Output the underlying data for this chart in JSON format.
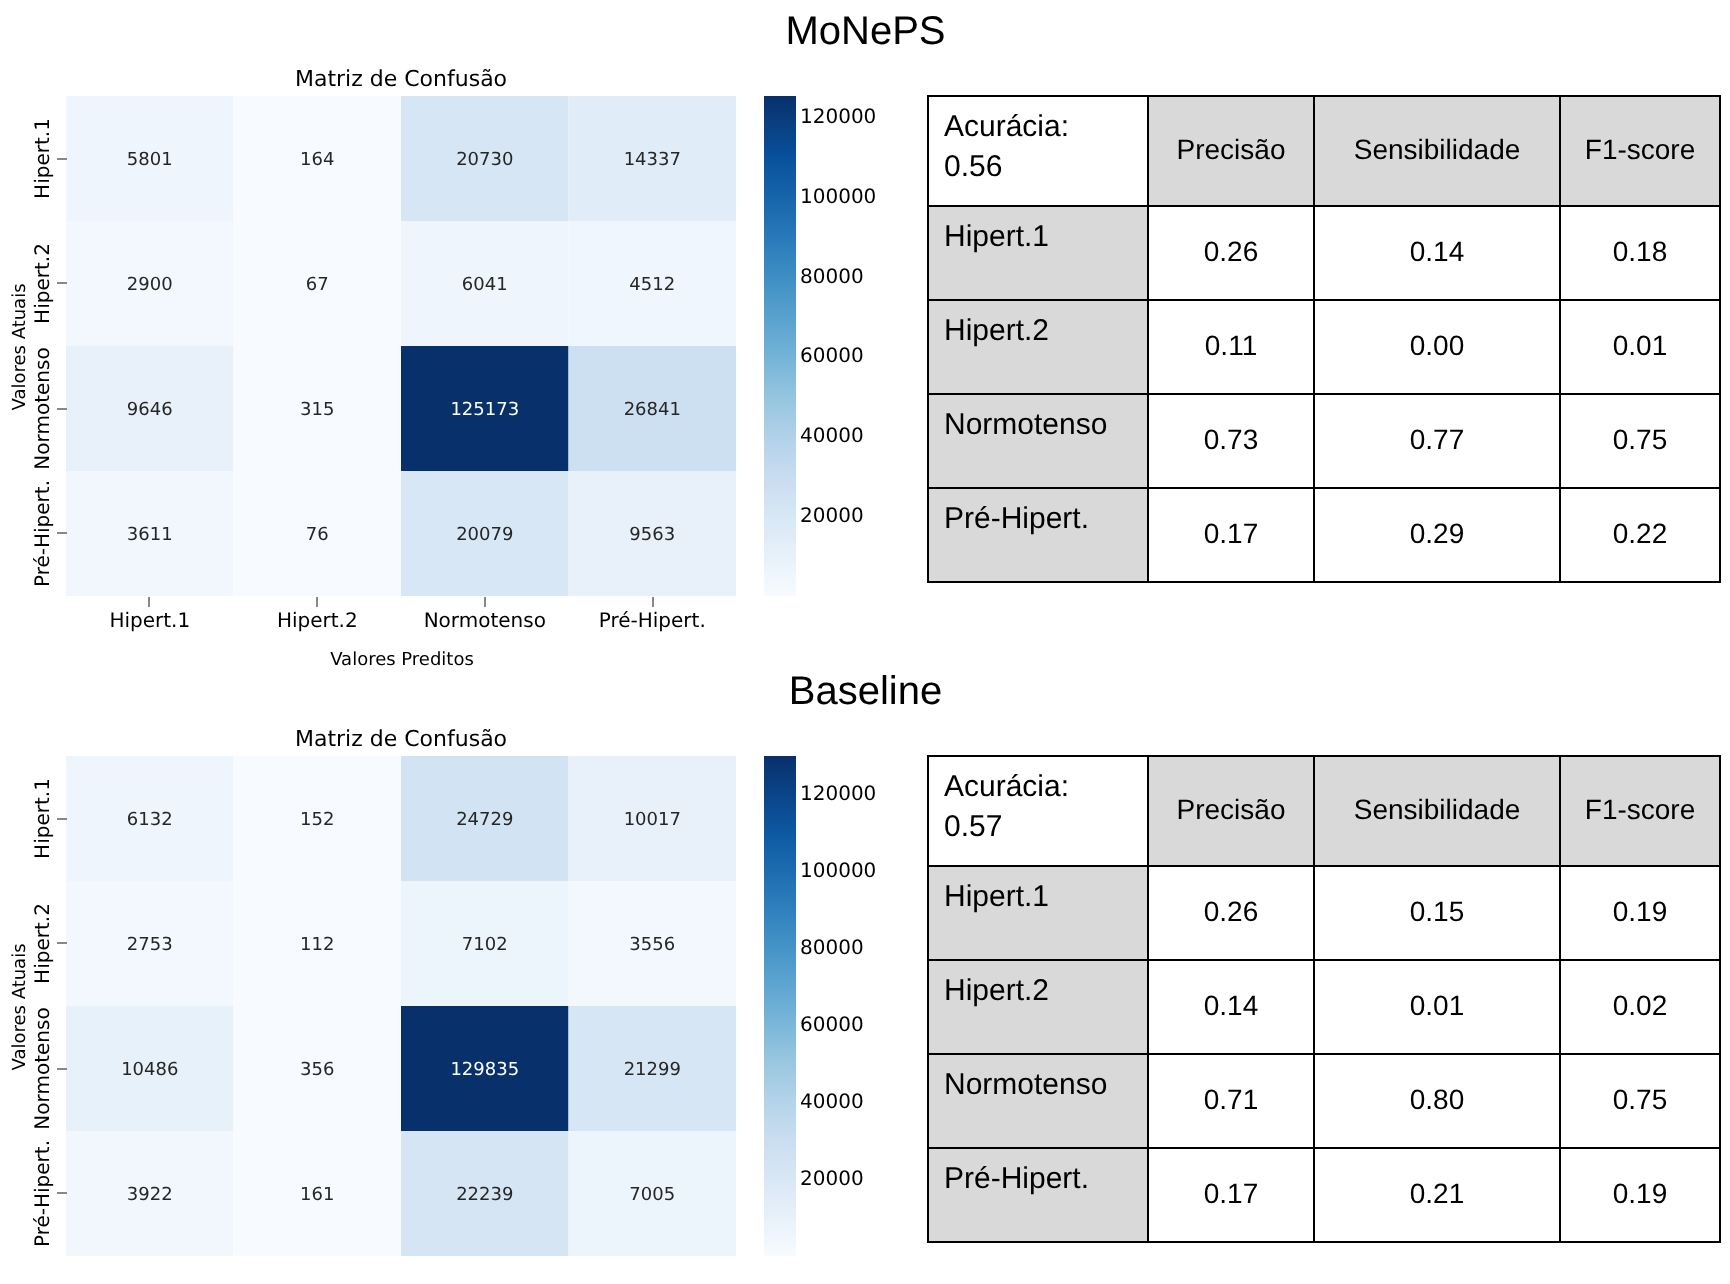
{
  "chart_data": [
    {
      "type": "heatmap",
      "title": "Matriz de Confusão",
      "annotations": [
        "MoNePS"
      ],
      "xlabel": "Valores Preditos",
      "ylabel": "Valores Atuais",
      "data_labels": true,
      "categories": [
        "Hipert.1",
        "Hipert.2",
        "Normotenso",
        "Pré-Hipert."
      ],
      "y_categories": [
        "Hipert.1",
        "Hipert.2",
        "Normotenso",
        "Pré-Hipert."
      ],
      "cells": [
        [
          5801,
          164,
          20730,
          14337
        ],
        [
          2900,
          67,
          6041,
          4512
        ],
        [
          9646,
          315,
          125173,
          26841
        ],
        [
          3611,
          76,
          20079,
          9563
        ]
      ],
      "clim": [
        67,
        125173
      ],
      "cticks": [
        20000,
        40000,
        60000,
        80000,
        100000,
        120000
      ]
    },
    {
      "type": "other",
      "title": "Acurácia: 0.56",
      "categories": [
        "Precisão",
        "Sensibilidade",
        "F1-score"
      ],
      "y_categories": [
        "Hipert.1",
        "Hipert.2",
        "Normotenso",
        "Pré-Hipert."
      ],
      "cell_labels": [
        [
          "0.26",
          "0.14",
          "0.18"
        ],
        [
          "0.11",
          "0.00",
          "0.01"
        ],
        [
          "0.73",
          "0.77",
          "0.75"
        ],
        [
          "0.17",
          "0.29",
          "0.22"
        ]
      ]
    },
    {
      "type": "heatmap",
      "title": "Matriz de Confusão",
      "annotations": [
        "Baseline"
      ],
      "ylabel": "Valores Atuais",
      "tick_labels": "y",
      "data_labels": true,
      "categories": [
        null,
        null,
        null,
        null
      ],
      "y_categories": [
        "Hipert.1",
        "Hipert.2",
        "Normotenso",
        "Pré-Hipert."
      ],
      "cells": [
        [
          6132,
          152,
          24729,
          10017
        ],
        [
          2753,
          112,
          7102,
          3556
        ],
        [
          10486,
          356,
          129835,
          21299
        ],
        [
          3922,
          161,
          22239,
          7005
        ]
      ],
      "clim": [
        112,
        129835
      ],
      "cticks": [
        20000,
        40000,
        60000,
        80000,
        100000,
        120000
      ]
    },
    {
      "type": "other",
      "title": "Acurácia: 0.57",
      "categories": [
        "Precisão",
        "Sensibilidade",
        "F1-score"
      ],
      "y_categories": [
        "Hipert.1",
        "Hipert.2",
        "Normotenso",
        "Pré-Hipert."
      ],
      "cell_labels": [
        [
          "0.26",
          "0.15",
          "0.19"
        ],
        [
          "0.14",
          "0.01",
          "0.02"
        ],
        [
          "0.71",
          "0.80",
          "0.75"
        ],
        [
          "0.17",
          "0.21",
          "0.19"
        ]
      ]
    }
  ]
}
